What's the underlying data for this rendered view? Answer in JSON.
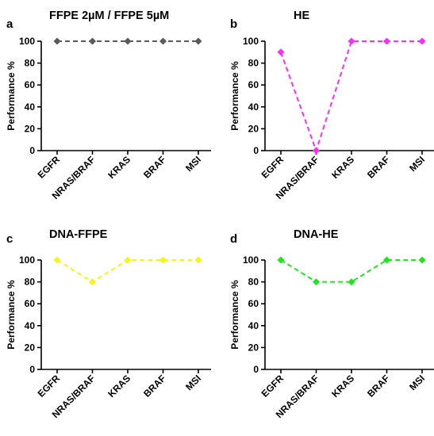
{
  "chart_data": [
    {
      "panel": "a",
      "type": "line",
      "title": "FFPE 2µM / FFPE 5µM",
      "xlabel": "",
      "ylabel": "Performance %",
      "categories": [
        "EGFR",
        "NRAS/BRAF",
        "KRAS",
        "BRAF",
        "MSI"
      ],
      "ylim": [
        0,
        100
      ],
      "yticks": [
        0,
        20,
        40,
        60,
        80,
        100
      ],
      "grid": false,
      "series": [
        {
          "values": [
            100,
            100,
            100,
            100,
            100
          ],
          "color": "#5a5a5a",
          "line_style": "dashed",
          "marker": "diamond"
        }
      ]
    },
    {
      "panel": "b",
      "type": "line",
      "title": "HE",
      "xlabel": "",
      "ylabel": "Performance %",
      "categories": [
        "EGFR",
        "NRAS/BRAF",
        "KRAS",
        "BRAF",
        "MSI"
      ],
      "ylim": [
        0,
        100
      ],
      "yticks": [
        0,
        20,
        40,
        60,
        80,
        100
      ],
      "grid": false,
      "series": [
        {
          "values": [
            90,
            0,
            100,
            100,
            100
          ],
          "color": "#ff2bff",
          "line_style": "dashed",
          "marker": "diamond"
        }
      ]
    },
    {
      "panel": "c",
      "type": "line",
      "title": "DNA-FFPE",
      "xlabel": "",
      "ylabel": "Performance %",
      "categories": [
        "EGFR",
        "NRAS/BRAF",
        "KRAS",
        "BRAF",
        "MSI"
      ],
      "ylim": [
        0,
        100
      ],
      "yticks": [
        0,
        20,
        40,
        60,
        80,
        100
      ],
      "grid": false,
      "series": [
        {
          "values": [
            100,
            80,
            100,
            100,
            100
          ],
          "color": "#f5f51a",
          "line_style": "dashed",
          "marker": "diamond"
        }
      ]
    },
    {
      "panel": "d",
      "type": "line",
      "title": "DNA-HE",
      "xlabel": "",
      "ylabel": "Performance %",
      "categories": [
        "EGFR",
        "NRAS/BRAF",
        "KRAS",
        "BRAF",
        "MSI"
      ],
      "ylim": [
        0,
        100
      ],
      "yticks": [
        0,
        20,
        40,
        60,
        80,
        100
      ],
      "grid": false,
      "series": [
        {
          "values": [
            100,
            80,
            80,
            100,
            100
          ],
          "color": "#1ee61e",
          "line_style": "dashed",
          "marker": "diamond"
        }
      ]
    }
  ]
}
